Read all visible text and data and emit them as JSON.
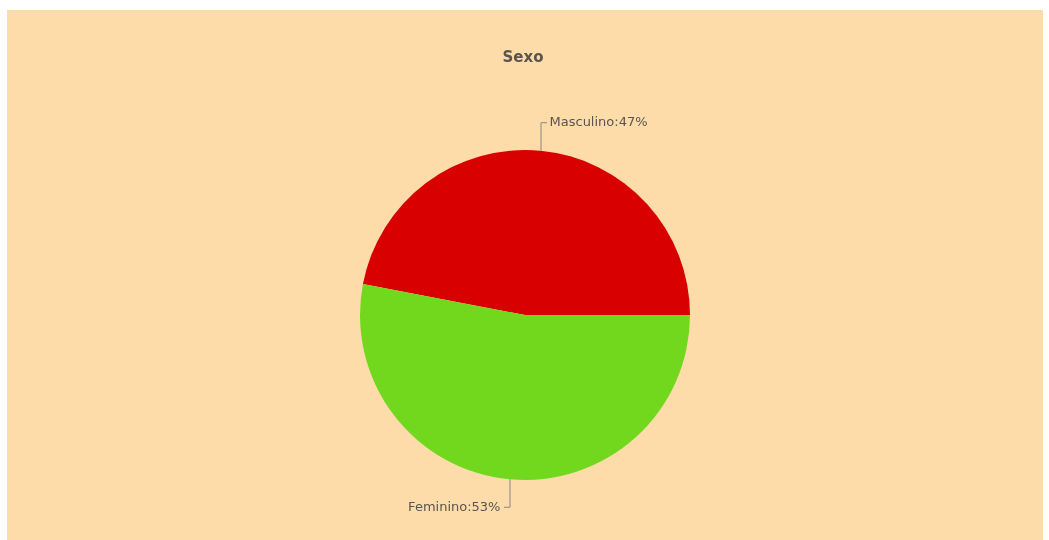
{
  "chart_data": {
    "type": "pie",
    "title": "Sexo",
    "categories": [
      "Masculino",
      "Feminino"
    ],
    "values": [
      47,
      53
    ],
    "colors": [
      "#d80000",
      "#72d81e"
    ],
    "value_labels": [
      "47%",
      "53%"
    ]
  }
}
